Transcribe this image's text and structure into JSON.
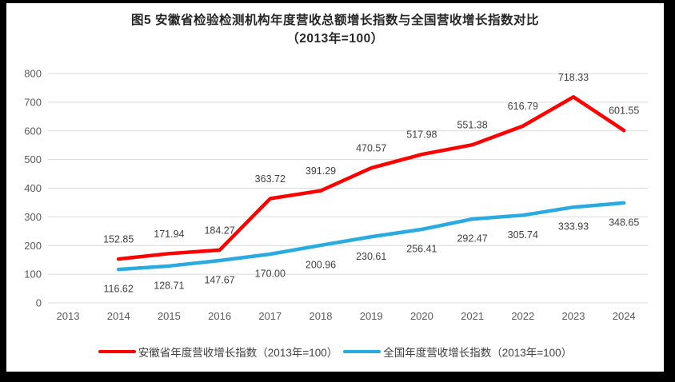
{
  "chart_data": {
    "type": "line",
    "title": "图5  安徽省检验检测机构年度营收总额增长指数与全国营收增长指数对比",
    "subtitle": "（2013年=100）",
    "categories": [
      "2013",
      "2014",
      "2015",
      "2016",
      "2017",
      "2018",
      "2019",
      "2020",
      "2021",
      "2022",
      "2023",
      "2024"
    ],
    "series": [
      {
        "name": "安徽省年度营收增长指数（2013年=100）",
        "color": "#FF0000",
        "start_category": "2014",
        "start_index": 1,
        "values": [
          152.85,
          171.94,
          184.27,
          363.72,
          391.29,
          470.57,
          517.98,
          551.38,
          616.79,
          718.33,
          601.55
        ],
        "label_position": "above",
        "label_decimals": 2
      },
      {
        "name": "全国年度营收增长指数（2013年=100）",
        "color": "#29ABE2",
        "start_category": "2014",
        "start_index": 1,
        "values": [
          116.62,
          128.71,
          147.67,
          170.0,
          200.96,
          230.61,
          256.41,
          292.47,
          305.74,
          333.93,
          348.65
        ],
        "label_position": "below",
        "label_decimals": 2
      }
    ],
    "ylim": [
      0,
      800
    ],
    "ytick_step": 100,
    "ytick_labels": [
      "0",
      "100",
      "200",
      "300",
      "400",
      "500",
      "600",
      "700",
      "800"
    ],
    "grid": true,
    "legend_position": "bottom",
    "xlabel": "",
    "ylabel": ""
  },
  "colors": {
    "frame_border": "#000000",
    "chart_background": "#FFFFFF",
    "gridline": "#D9D9D9",
    "axis_text": "#595959",
    "data_label_text": "#404040",
    "title_text": "#262626",
    "series_anhui": "#FF0000",
    "series_national": "#29ABE2"
  }
}
